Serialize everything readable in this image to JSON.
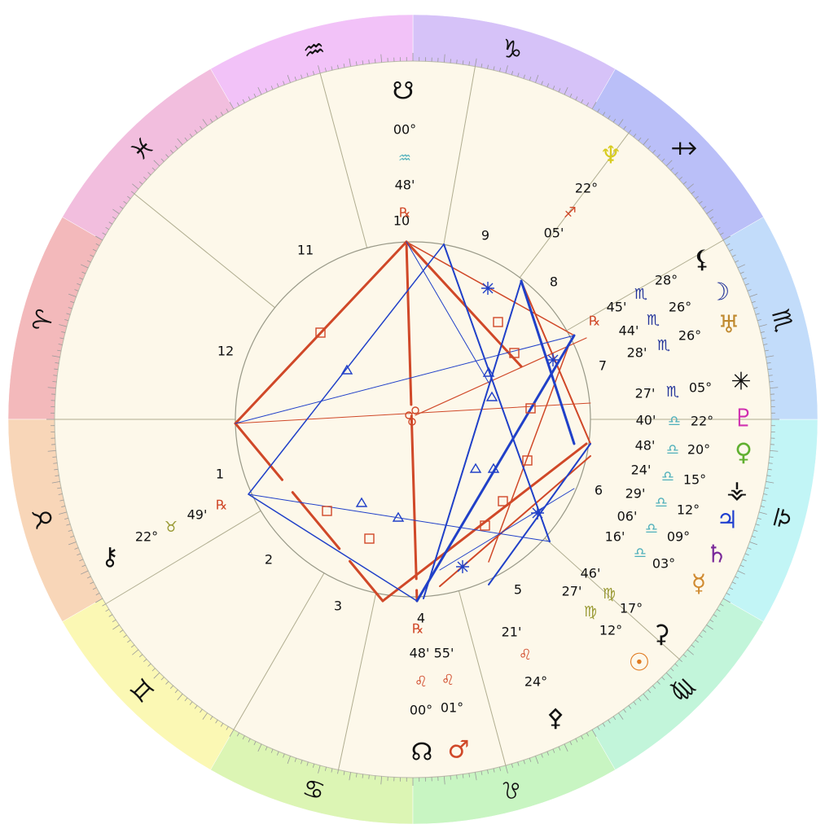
{
  "signs": [
    "♈",
    "♉",
    "♊",
    "♋",
    "♌",
    "♍",
    "♎",
    "♏",
    "♐",
    "♑",
    "♒",
    "♓"
  ],
  "houses": [
    "1",
    "2",
    "3",
    "4",
    "5",
    "6",
    "7",
    "8",
    "9",
    "10",
    "11",
    "12"
  ],
  "bodies": [
    {
      "glyph": "☋",
      "degree": "00°",
      "sign": "♒",
      "minute": "48'",
      "retrograde": "℞"
    },
    {
      "glyph": "♆",
      "degree": "22°",
      "sign": "♐",
      "minute": "05'"
    },
    {
      "glyph": "⚸",
      "degree": "28°",
      "sign": "♏",
      "minute": "45'",
      "retrograde": "℞"
    },
    {
      "glyph": "☽",
      "degree": "26°",
      "sign": "♏",
      "minute": "44'"
    },
    {
      "glyph": "♅",
      "degree": "26°",
      "sign": "♏",
      "minute": "28'"
    },
    {
      "glyph": "✳",
      "degree": "05°",
      "sign": "♏",
      "minute": "27'"
    },
    {
      "glyph": "♇",
      "degree": "22°",
      "sign": "♎",
      "minute": "40'"
    },
    {
      "glyph": "♀",
      "degree": "20°",
      "sign": "♎",
      "minute": "48'"
    },
    {
      "glyph": "⚶",
      "degree": "15°",
      "sign": "♎",
      "minute": "24'"
    },
    {
      "glyph": "♃",
      "degree": "12°",
      "sign": "♎",
      "minute": "29'"
    },
    {
      "glyph": "♄",
      "degree": "09°",
      "sign": "♎",
      "minute": "06'"
    },
    {
      "glyph": "☿",
      "degree": "03°",
      "sign": "♎",
      "minute": "16'"
    },
    {
      "glyph": "⚳",
      "degree": "17°",
      "sign": "♍",
      "minute": "46'"
    },
    {
      "glyph": "☉",
      "degree": "12°",
      "sign": "♍",
      "minute": "27'"
    },
    {
      "glyph": "⚴",
      "degree": "24°",
      "sign": "♌",
      "minute": "21'"
    },
    {
      "glyph": "☊",
      "degree": "00°",
      "sign": "♌",
      "minute": "48'",
      "retrograde": "℞"
    },
    {
      "glyph": "♂",
      "degree": "01°",
      "sign": "♌",
      "minute": "55'"
    },
    {
      "glyph": "⚷",
      "degree": "22°",
      "sign": "♉",
      "minute": "49'",
      "retrograde": "℞"
    }
  ]
}
